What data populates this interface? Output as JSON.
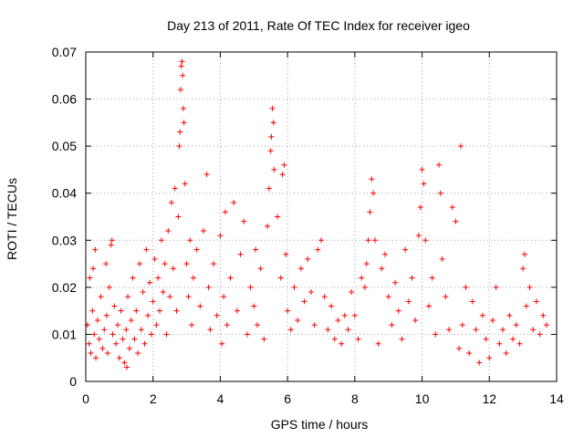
{
  "chart_data": {
    "type": "scatter",
    "title": "Day 213 of 2011, Rate Of TEC Index for receiver igeo",
    "xlabel": "GPS time / hours",
    "ylabel": "ROTI / TECUs",
    "xlim": [
      0,
      14
    ],
    "ylim": [
      0,
      0.07
    ],
    "x_ticks": [
      0,
      2,
      4,
      6,
      8,
      10,
      12,
      14
    ],
    "x_tick_labels": [
      "0",
      "2",
      "4",
      "6",
      "8",
      "10",
      "12",
      "14"
    ],
    "y_ticks": [
      0,
      0.01,
      0.02,
      0.03,
      0.04,
      0.05,
      0.06,
      0.07
    ],
    "y_tick_labels": [
      "0",
      "0.01",
      "0.02",
      "0.03",
      "0.04",
      "0.05",
      "0.06",
      "0.07"
    ],
    "grid": true,
    "marker": "plus",
    "color": "#ff0000",
    "series": [
      {
        "points": [
          [
            0.05,
            0.012
          ],
          [
            0.1,
            0.008
          ],
          [
            0.12,
            0.022
          ],
          [
            0.15,
            0.006
          ],
          [
            0.2,
            0.015
          ],
          [
            0.22,
            0.024
          ],
          [
            0.25,
            0.01
          ],
          [
            0.28,
            0.028
          ],
          [
            0.3,
            0.005
          ],
          [
            0.35,
            0.013
          ],
          [
            0.4,
            0.009
          ],
          [
            0.45,
            0.018
          ],
          [
            0.5,
            0.007
          ],
          [
            0.55,
            0.011
          ],
          [
            0.6,
            0.025
          ],
          [
            0.62,
            0.014
          ],
          [
            0.65,
            0.006
          ],
          [
            0.7,
            0.02
          ],
          [
            0.75,
            0.029
          ],
          [
            0.78,
            0.03
          ],
          [
            0.8,
            0.01
          ],
          [
            0.85,
            0.016
          ],
          [
            0.9,
            0.008
          ],
          [
            0.95,
            0.012
          ],
          [
            1.0,
            0.005
          ],
          [
            1.05,
            0.015
          ],
          [
            1.1,
            0.009
          ],
          [
            1.15,
            0.004
          ],
          [
            1.2,
            0.011
          ],
          [
            1.22,
            0.003
          ],
          [
            1.25,
            0.018
          ],
          [
            1.3,
            0.007
          ],
          [
            1.35,
            0.013
          ],
          [
            1.4,
            0.022
          ],
          [
            1.45,
            0.009
          ],
          [
            1.5,
            0.015
          ],
          [
            1.55,
            0.006
          ],
          [
            1.6,
            0.025
          ],
          [
            1.65,
            0.011
          ],
          [
            1.7,
            0.019
          ],
          [
            1.75,
            0.008
          ],
          [
            1.8,
            0.028
          ],
          [
            1.85,
            0.014
          ],
          [
            1.9,
            0.021
          ],
          [
            1.95,
            0.01
          ],
          [
            2.0,
            0.017
          ],
          [
            2.05,
            0.026
          ],
          [
            2.1,
            0.012
          ],
          [
            2.15,
            0.022
          ],
          [
            2.2,
            0.015
          ],
          [
            2.25,
            0.03
          ],
          [
            2.3,
            0.019
          ],
          [
            2.35,
            0.025
          ],
          [
            2.4,
            0.01
          ],
          [
            2.45,
            0.032
          ],
          [
            2.5,
            0.018
          ],
          [
            2.55,
            0.038
          ],
          [
            2.6,
            0.024
          ],
          [
            2.65,
            0.041
          ],
          [
            2.7,
            0.015
          ],
          [
            2.75,
            0.035
          ],
          [
            2.78,
            0.05
          ],
          [
            2.8,
            0.053
          ],
          [
            2.82,
            0.062
          ],
          [
            2.84,
            0.067
          ],
          [
            2.86,
            0.068
          ],
          [
            2.88,
            0.065
          ],
          [
            2.9,
            0.058
          ],
          [
            2.92,
            0.055
          ],
          [
            2.95,
            0.042
          ],
          [
            3.0,
            0.025
          ],
          [
            3.05,
            0.018
          ],
          [
            3.1,
            0.03
          ],
          [
            3.15,
            0.012
          ],
          [
            3.2,
            0.022
          ],
          [
            3.3,
            0.028
          ],
          [
            3.4,
            0.016
          ],
          [
            3.5,
            0.032
          ],
          [
            3.6,
            0.044
          ],
          [
            3.65,
            0.02
          ],
          [
            3.7,
            0.011
          ],
          [
            3.8,
            0.025
          ],
          [
            3.9,
            0.014
          ],
          [
            4.0,
            0.031
          ],
          [
            4.05,
            0.008
          ],
          [
            4.1,
            0.018
          ],
          [
            4.15,
            0.036
          ],
          [
            4.2,
            0.012
          ],
          [
            4.3,
            0.022
          ],
          [
            4.4,
            0.038
          ],
          [
            4.5,
            0.015
          ],
          [
            4.6,
            0.027
          ],
          [
            4.7,
            0.034
          ],
          [
            4.8,
            0.01
          ],
          [
            4.9,
            0.02
          ],
          [
            5.0,
            0.016
          ],
          [
            5.05,
            0.028
          ],
          [
            5.1,
            0.012
          ],
          [
            5.2,
            0.024
          ],
          [
            5.3,
            0.009
          ],
          [
            5.4,
            0.033
          ],
          [
            5.45,
            0.041
          ],
          [
            5.5,
            0.049
          ],
          [
            5.52,
            0.052
          ],
          [
            5.55,
            0.058
          ],
          [
            5.58,
            0.055
          ],
          [
            5.6,
            0.045
          ],
          [
            5.7,
            0.035
          ],
          [
            5.8,
            0.022
          ],
          [
            5.85,
            0.044
          ],
          [
            5.9,
            0.046
          ],
          [
            5.95,
            0.027
          ],
          [
            6.0,
            0.015
          ],
          [
            6.1,
            0.011
          ],
          [
            6.2,
            0.02
          ],
          [
            6.3,
            0.013
          ],
          [
            6.4,
            0.024
          ],
          [
            6.5,
            0.017
          ],
          [
            6.6,
            0.026
          ],
          [
            6.7,
            0.019
          ],
          [
            6.8,
            0.012
          ],
          [
            6.9,
            0.028
          ],
          [
            7.0,
            0.03
          ],
          [
            7.1,
            0.018
          ],
          [
            7.2,
            0.011
          ],
          [
            7.3,
            0.016
          ],
          [
            7.4,
            0.009
          ],
          [
            7.5,
            0.013
          ],
          [
            7.6,
            0.008
          ],
          [
            7.7,
            0.014
          ],
          [
            7.8,
            0.011
          ],
          [
            7.9,
            0.019
          ],
          [
            8.0,
            0.014
          ],
          [
            8.1,
            0.009
          ],
          [
            8.2,
            0.022
          ],
          [
            8.3,
            0.02
          ],
          [
            8.35,
            0.025
          ],
          [
            8.4,
            0.03
          ],
          [
            8.45,
            0.036
          ],
          [
            8.5,
            0.043
          ],
          [
            8.55,
            0.04
          ],
          [
            8.6,
            0.03
          ],
          [
            8.7,
            0.008
          ],
          [
            8.8,
            0.024
          ],
          [
            8.9,
            0.027
          ],
          [
            9.0,
            0.018
          ],
          [
            9.1,
            0.012
          ],
          [
            9.2,
            0.021
          ],
          [
            9.3,
            0.015
          ],
          [
            9.4,
            0.009
          ],
          [
            9.5,
            0.028
          ],
          [
            9.6,
            0.017
          ],
          [
            9.7,
            0.022
          ],
          [
            9.8,
            0.013
          ],
          [
            9.9,
            0.031
          ],
          [
            9.95,
            0.037
          ],
          [
            10.0,
            0.045
          ],
          [
            10.05,
            0.042
          ],
          [
            10.1,
            0.03
          ],
          [
            10.2,
            0.016
          ],
          [
            10.3,
            0.022
          ],
          [
            10.4,
            0.01
          ],
          [
            10.5,
            0.046
          ],
          [
            10.55,
            0.04
          ],
          [
            10.6,
            0.026
          ],
          [
            10.7,
            0.018
          ],
          [
            10.8,
            0.011
          ],
          [
            10.9,
            0.037
          ],
          [
            11.0,
            0.034
          ],
          [
            11.1,
            0.007
          ],
          [
            11.15,
            0.05
          ],
          [
            11.2,
            0.012
          ],
          [
            11.3,
            0.02
          ],
          [
            11.4,
            0.006
          ],
          [
            11.5,
            0.017
          ],
          [
            11.6,
            0.011
          ],
          [
            11.7,
            0.004
          ],
          [
            11.8,
            0.014
          ],
          [
            11.9,
            0.009
          ],
          [
            12.0,
            0.005
          ],
          [
            12.1,
            0.013
          ],
          [
            12.2,
            0.02
          ],
          [
            12.3,
            0.008
          ],
          [
            12.4,
            0.011
          ],
          [
            12.5,
            0.006
          ],
          [
            12.6,
            0.014
          ],
          [
            12.7,
            0.009
          ],
          [
            12.8,
            0.012
          ],
          [
            12.9,
            0.008
          ],
          [
            13.0,
            0.024
          ],
          [
            13.05,
            0.027
          ],
          [
            13.1,
            0.016
          ],
          [
            13.2,
            0.02
          ],
          [
            13.3,
            0.011
          ],
          [
            13.4,
            0.017
          ],
          [
            13.5,
            0.01
          ],
          [
            13.6,
            0.014
          ],
          [
            13.7,
            0.012
          ]
        ]
      }
    ]
  }
}
